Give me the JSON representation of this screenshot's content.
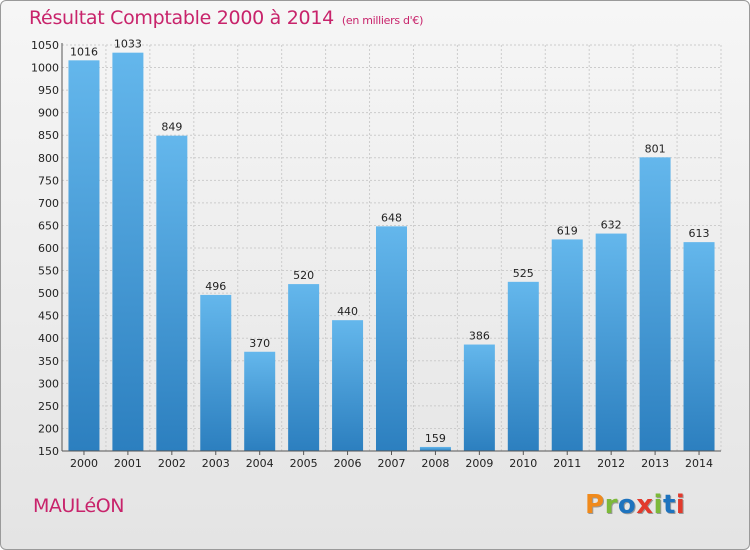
{
  "chart_data": {
    "type": "bar",
    "title": "Résultat Comptable 2000 à 2014",
    "subtitle": "(en milliers d'€)",
    "categories": [
      "2000",
      "2001",
      "2002",
      "2003",
      "2004",
      "2005",
      "2006",
      "2007",
      "2008",
      "2009",
      "2010",
      "2011",
      "2012",
      "2013",
      "2014"
    ],
    "values": [
      1016,
      1033,
      849,
      496,
      370,
      520,
      440,
      648,
      159,
      386,
      525,
      619,
      632,
      801,
      613
    ],
    "ylim": [
      150,
      1050
    ],
    "yticks": [
      150,
      200,
      250,
      300,
      350,
      400,
      450,
      500,
      550,
      600,
      650,
      700,
      750,
      800,
      850,
      900,
      950,
      1000,
      1050
    ],
    "grid": true,
    "bar_color_top": "#64b7ec",
    "bar_color_bottom": "#2c7fbf"
  },
  "footer": {
    "town": "MAULéON",
    "brand": "Proxiti",
    "brand_colors": [
      "#f08a1c",
      "#7cb93a",
      "#1e73be",
      "#e23a2c",
      "#7cb93a",
      "#1e73be",
      "#e23a2c"
    ]
  },
  "colors": {
    "title": "#c8236b",
    "grid": "#cccccc",
    "axis": "#555555"
  }
}
